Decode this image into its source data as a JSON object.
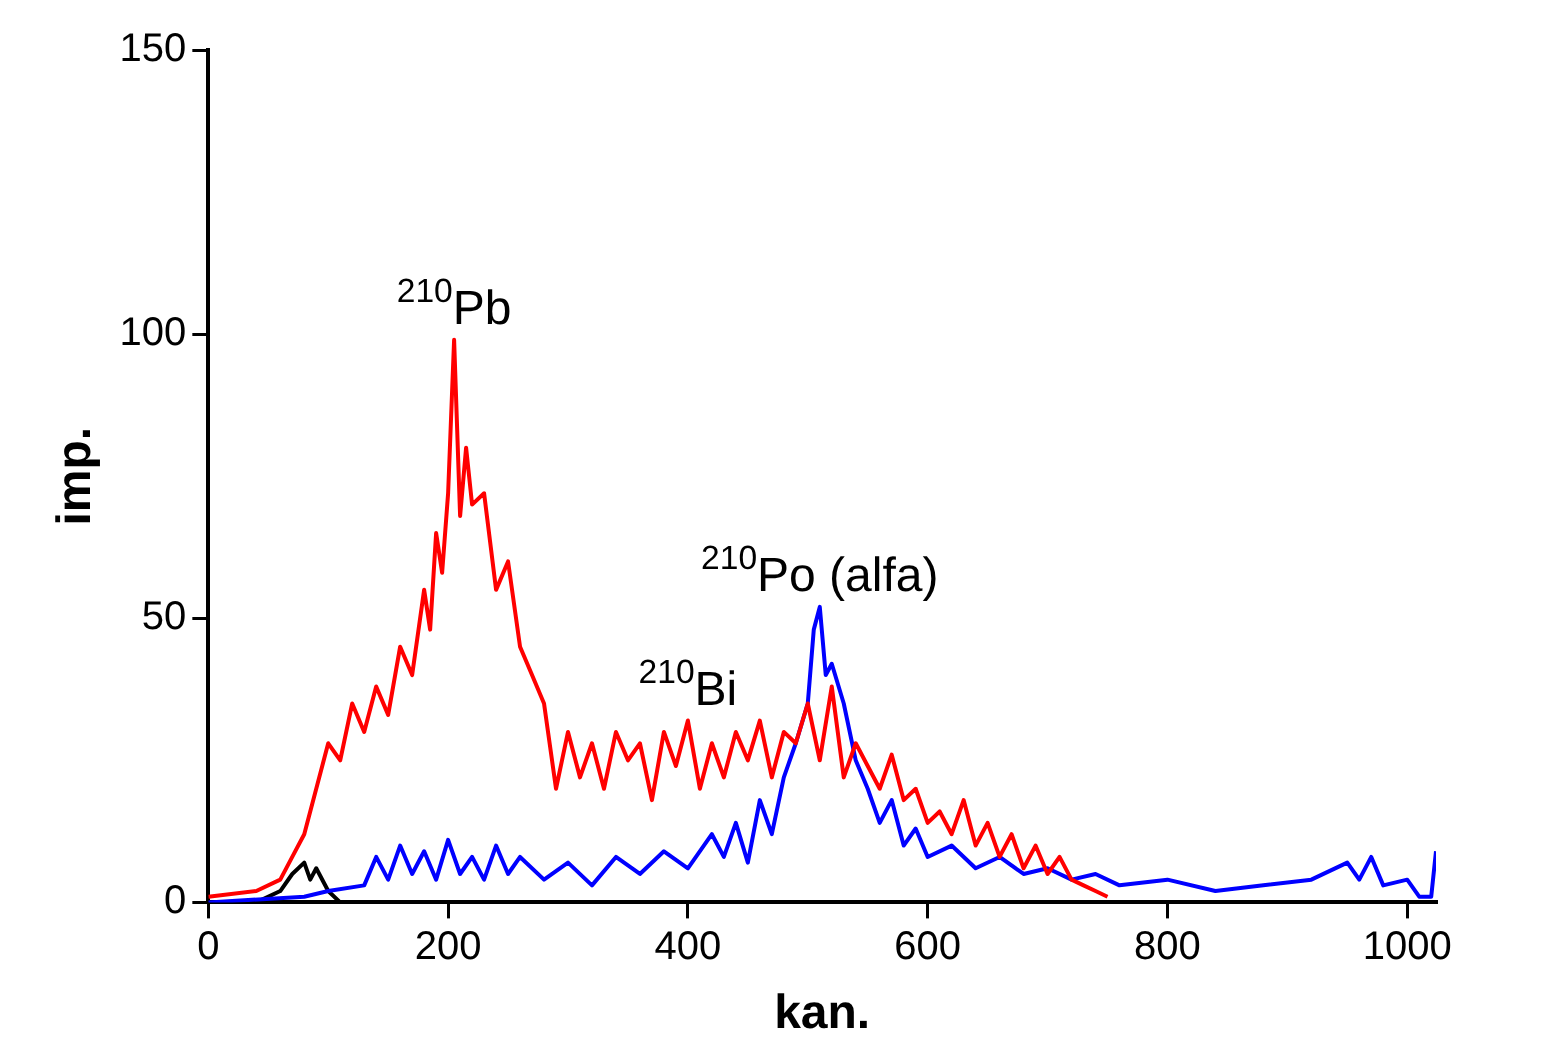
{
  "chart_data": {
    "type": "line",
    "xlabel": "kan.",
    "ylabel": "imp.",
    "xlim": [
      0,
      1024
    ],
    "xticks": [
      0,
      200,
      400,
      600,
      800,
      1000
    ],
    "ylim": [
      0,
      150
    ],
    "yticks": [
      0,
      50,
      100,
      150
    ],
    "grid": false,
    "legend": false,
    "marker": "none",
    "line_style": "solid",
    "annotations": [
      {
        "text": "$^{210}$Pb",
        "x": 205,
        "y": 99
      },
      {
        "text": "$^{210}$Bi",
        "x": 400,
        "y": 32
      },
      {
        "text": "$^{210}$Po (alfa)",
        "x": 510,
        "y": 52
      }
    ],
    "series": [
      {
        "color": "#ff0000",
        "x": [
          0,
          40,
          60,
          70,
          80,
          90,
          100,
          110,
          120,
          130,
          140,
          150,
          160,
          170,
          180,
          185,
          190,
          195,
          200,
          205,
          210,
          215,
          220,
          230,
          240,
          250,
          260,
          270,
          280,
          290,
          300,
          310,
          320,
          330,
          340,
          350,
          360,
          370,
          380,
          390,
          400,
          410,
          420,
          430,
          440,
          450,
          460,
          470,
          480,
          490,
          500,
          510,
          520,
          530,
          540,
          550,
          560,
          570,
          580,
          590,
          600,
          610,
          620,
          630,
          640,
          650,
          660,
          670,
          680,
          690,
          700,
          710,
          720,
          730,
          740,
          750
        ],
        "values": [
          1,
          2,
          4,
          8,
          12,
          20,
          28,
          25,
          35,
          30,
          38,
          33,
          45,
          40,
          55,
          48,
          65,
          58,
          72,
          99,
          68,
          80,
          70,
          72,
          55,
          60,
          45,
          40,
          35,
          20,
          30,
          22,
          28,
          20,
          30,
          25,
          28,
          18,
          30,
          24,
          32,
          20,
          28,
          22,
          30,
          25,
          32,
          22,
          30,
          28,
          35,
          25,
          38,
          22,
          28,
          24,
          20,
          26,
          18,
          20,
          14,
          16,
          12,
          18,
          10,
          14,
          8,
          12,
          6,
          10,
          5,
          8,
          4,
          3,
          2,
          1
        ]
      },
      {
        "color": "#0000ff",
        "x": [
          0,
          80,
          100,
          130,
          140,
          150,
          160,
          170,
          180,
          190,
          200,
          210,
          220,
          230,
          240,
          250,
          260,
          280,
          300,
          320,
          340,
          360,
          380,
          400,
          420,
          430,
          440,
          450,
          460,
          470,
          480,
          490,
          500,
          505,
          510,
          515,
          520,
          530,
          540,
          550,
          560,
          570,
          580,
          590,
          600,
          620,
          640,
          660,
          680,
          700,
          720,
          740,
          760,
          800,
          840,
          880,
          920,
          950,
          960,
          970,
          980,
          1000,
          1010,
          1020,
          1024
        ],
        "values": [
          0,
          1,
          2,
          3,
          8,
          4,
          10,
          5,
          9,
          4,
          11,
          5,
          8,
          4,
          10,
          5,
          8,
          4,
          7,
          3,
          8,
          5,
          9,
          6,
          12,
          8,
          14,
          7,
          18,
          12,
          22,
          28,
          35,
          48,
          52,
          40,
          42,
          35,
          25,
          20,
          14,
          18,
          10,
          13,
          8,
          10,
          6,
          8,
          5,
          6,
          4,
          5,
          3,
          4,
          2,
          3,
          4,
          7,
          4,
          8,
          3,
          4,
          1,
          1,
          9
        ]
      },
      {
        "color": "#000000",
        "x": [
          40,
          60,
          70,
          80,
          85,
          90,
          100,
          110
        ],
        "values": [
          0,
          2,
          5,
          7,
          4,
          6,
          2,
          0
        ]
      }
    ]
  }
}
